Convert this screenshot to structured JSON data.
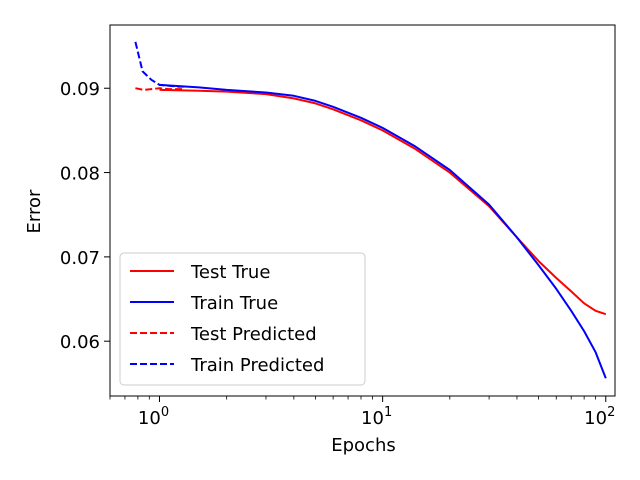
{
  "chart_data": {
    "type": "line",
    "xlabel": "Epochs",
    "ylabel": "Error",
    "x_scale": "log",
    "xlim": [
      0.6,
      110
    ],
    "ylim": [
      0.0535,
      0.0975
    ],
    "x_ticks": [
      {
        "value": 1,
        "label": "10",
        "exp": "0"
      },
      {
        "value": 10,
        "label": "10",
        "exp": "1"
      },
      {
        "value": 100,
        "label": "10",
        "exp": "2"
      }
    ],
    "y_ticks": [
      {
        "value": 0.06,
        "label": "0.06"
      },
      {
        "value": 0.07,
        "label": "0.07"
      },
      {
        "value": 0.08,
        "label": "0.08"
      },
      {
        "value": 0.09,
        "label": "0.09"
      }
    ],
    "grid": false,
    "legend_position": "lower-left",
    "series": [
      {
        "name": "Test True",
        "color": "#ff0000",
        "dash": "solid",
        "x": [
          1,
          1.5,
          2,
          3,
          4,
          5,
          6,
          8,
          10,
          14,
          20,
          30,
          40,
          50,
          60,
          70,
          80,
          90,
          100
        ],
        "y": [
          0.0898,
          0.0897,
          0.0896,
          0.0893,
          0.0888,
          0.0882,
          0.0875,
          0.0862,
          0.085,
          0.0828,
          0.08,
          0.076,
          0.0723,
          0.0695,
          0.0675,
          0.0659,
          0.0645,
          0.0636,
          0.0632
        ]
      },
      {
        "name": "Train True",
        "color": "#0000ff",
        "dash": "solid",
        "x": [
          1,
          1.5,
          2,
          3,
          4,
          5,
          6,
          8,
          10,
          14,
          20,
          30,
          40,
          50,
          60,
          70,
          80,
          90,
          100
        ],
        "y": [
          0.0904,
          0.0901,
          0.0898,
          0.0895,
          0.0891,
          0.0885,
          0.0878,
          0.0865,
          0.0853,
          0.0831,
          0.0803,
          0.0762,
          0.0723,
          0.069,
          0.0662,
          0.0636,
          0.0612,
          0.0587,
          0.0556
        ]
      },
      {
        "name": "Test Predicted",
        "color": "#ff0000",
        "dash": "dashed",
        "x": [
          0.78,
          0.85,
          0.92,
          1.0,
          1.1,
          1.2,
          1.3
        ],
        "y": [
          0.09,
          0.0898,
          0.0899,
          0.09,
          0.0899,
          0.0899,
          0.0899
        ]
      },
      {
        "name": "Train Predicted",
        "color": "#0000ff",
        "dash": "dashed",
        "x": [
          0.78,
          0.84,
          0.92,
          1.0,
          1.1,
          1.2,
          1.3
        ],
        "y": [
          0.0955,
          0.092,
          0.091,
          0.0904,
          0.0903,
          0.0902,
          0.0902
        ]
      }
    ],
    "legend_order": [
      "Test True",
      "Train True",
      "Test Predicted",
      "Train Predicted"
    ]
  }
}
